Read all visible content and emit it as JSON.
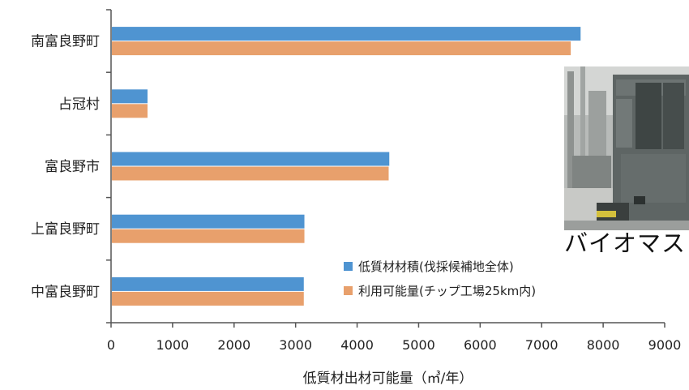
{
  "chart_data": {
    "type": "bar",
    "orientation": "horizontal",
    "categories": [
      "南富良野町",
      "占冠村",
      "富良野市",
      "上富良野町",
      "中富良野町"
    ],
    "series": [
      {
        "name": "低質材材積(伐採候補地全体)",
        "color": "#4f94d1",
        "values": [
          7620,
          580,
          4510,
          3130,
          3120
        ]
      },
      {
        "name": "利用可能量(チップ工場25km内)",
        "color": "#e8a06c",
        "values": [
          7460,
          580,
          4500,
          3130,
          3120
        ]
      }
    ],
    "xlabel": "低質材出材可能量（㎥/年）",
    "ylabel": "",
    "xlim": [
      0,
      9000
    ],
    "xticks": [
      "0",
      "1000",
      "2000",
      "3000",
      "4000",
      "5000",
      "6000",
      "7000",
      "8000",
      "9000"
    ],
    "grid": false,
    "legend_position": "lower-right"
  },
  "photo": {
    "caption": "バイオマス"
  }
}
